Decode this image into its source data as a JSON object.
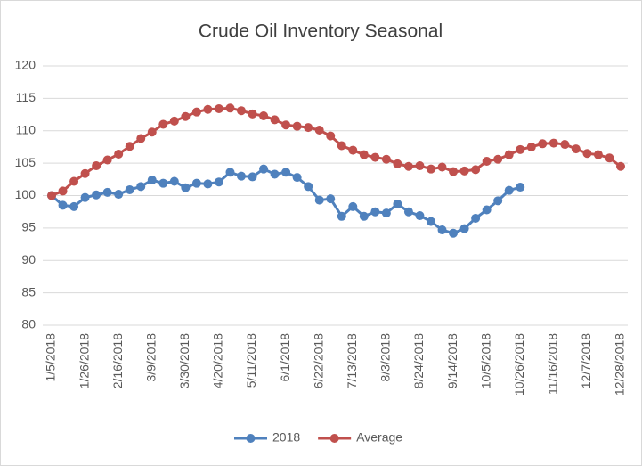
{
  "chart_data": {
    "type": "line",
    "title": "Crude Oil Inventory Seasonal",
    "categories": [
      "1/5/2018",
      null,
      null,
      "1/26/2018",
      null,
      null,
      "2/16/2018",
      null,
      null,
      "3/9/2018",
      null,
      null,
      "3/30/2018",
      null,
      null,
      "4/20/2018",
      null,
      null,
      "5/11/2018",
      null,
      null,
      "6/1/2018",
      null,
      null,
      "6/22/2018",
      null,
      null,
      "7/13/2018",
      null,
      null,
      "8/3/2018",
      null,
      null,
      "8/24/2018",
      null,
      null,
      "9/14/2018",
      null,
      null,
      "10/5/2018",
      null,
      null,
      "10/26/2018",
      null,
      null,
      "11/16/2018",
      null,
      null,
      "12/7/2018",
      null,
      null,
      "12/28/2018"
    ],
    "series": [
      {
        "name": "2018",
        "color": "#4f81bd",
        "values": [
          100,
          98.5,
          98.3,
          99.7,
          100.1,
          100.5,
          100.2,
          100.9,
          101.4,
          102.4,
          101.9,
          102.2,
          101.2,
          101.9,
          101.8,
          102.1,
          103.6,
          103.0,
          102.9,
          104.1,
          103.3,
          103.6,
          102.8,
          101.4,
          99.3,
          99.5,
          96.8,
          98.3,
          96.8,
          97.5,
          97.3,
          98.7,
          97.5,
          96.9,
          96.0,
          94.7,
          94.2,
          94.9,
          96.5,
          97.8,
          99.2,
          100.8,
          101.3,
          null,
          null,
          null,
          null,
          null,
          null,
          null,
          null,
          null
        ]
      },
      {
        "name": "Average",
        "color": "#c0504d",
        "values": [
          100,
          100.7,
          102.2,
          103.4,
          104.6,
          105.5,
          106.4,
          107.6,
          108.8,
          109.8,
          111.0,
          111.5,
          112.2,
          112.9,
          113.3,
          113.4,
          113.5,
          113.1,
          112.6,
          112.3,
          111.7,
          110.9,
          110.7,
          110.5,
          110.1,
          109.2,
          107.7,
          107.0,
          106.3,
          105.9,
          105.6,
          104.9,
          104.5,
          104.6,
          104.1,
          104.4,
          103.7,
          103.8,
          104.0,
          105.3,
          105.6,
          106.3,
          107.1,
          107.5,
          108.0,
          108.1,
          107.9,
          107.2,
          106.5,
          106.3,
          105.8,
          104.5
        ]
      }
    ],
    "ylim": [
      80,
      120
    ],
    "yticks": [
      80,
      85,
      90,
      95,
      100,
      105,
      110,
      115,
      120
    ],
    "grid": true,
    "legend": "bottom"
  }
}
